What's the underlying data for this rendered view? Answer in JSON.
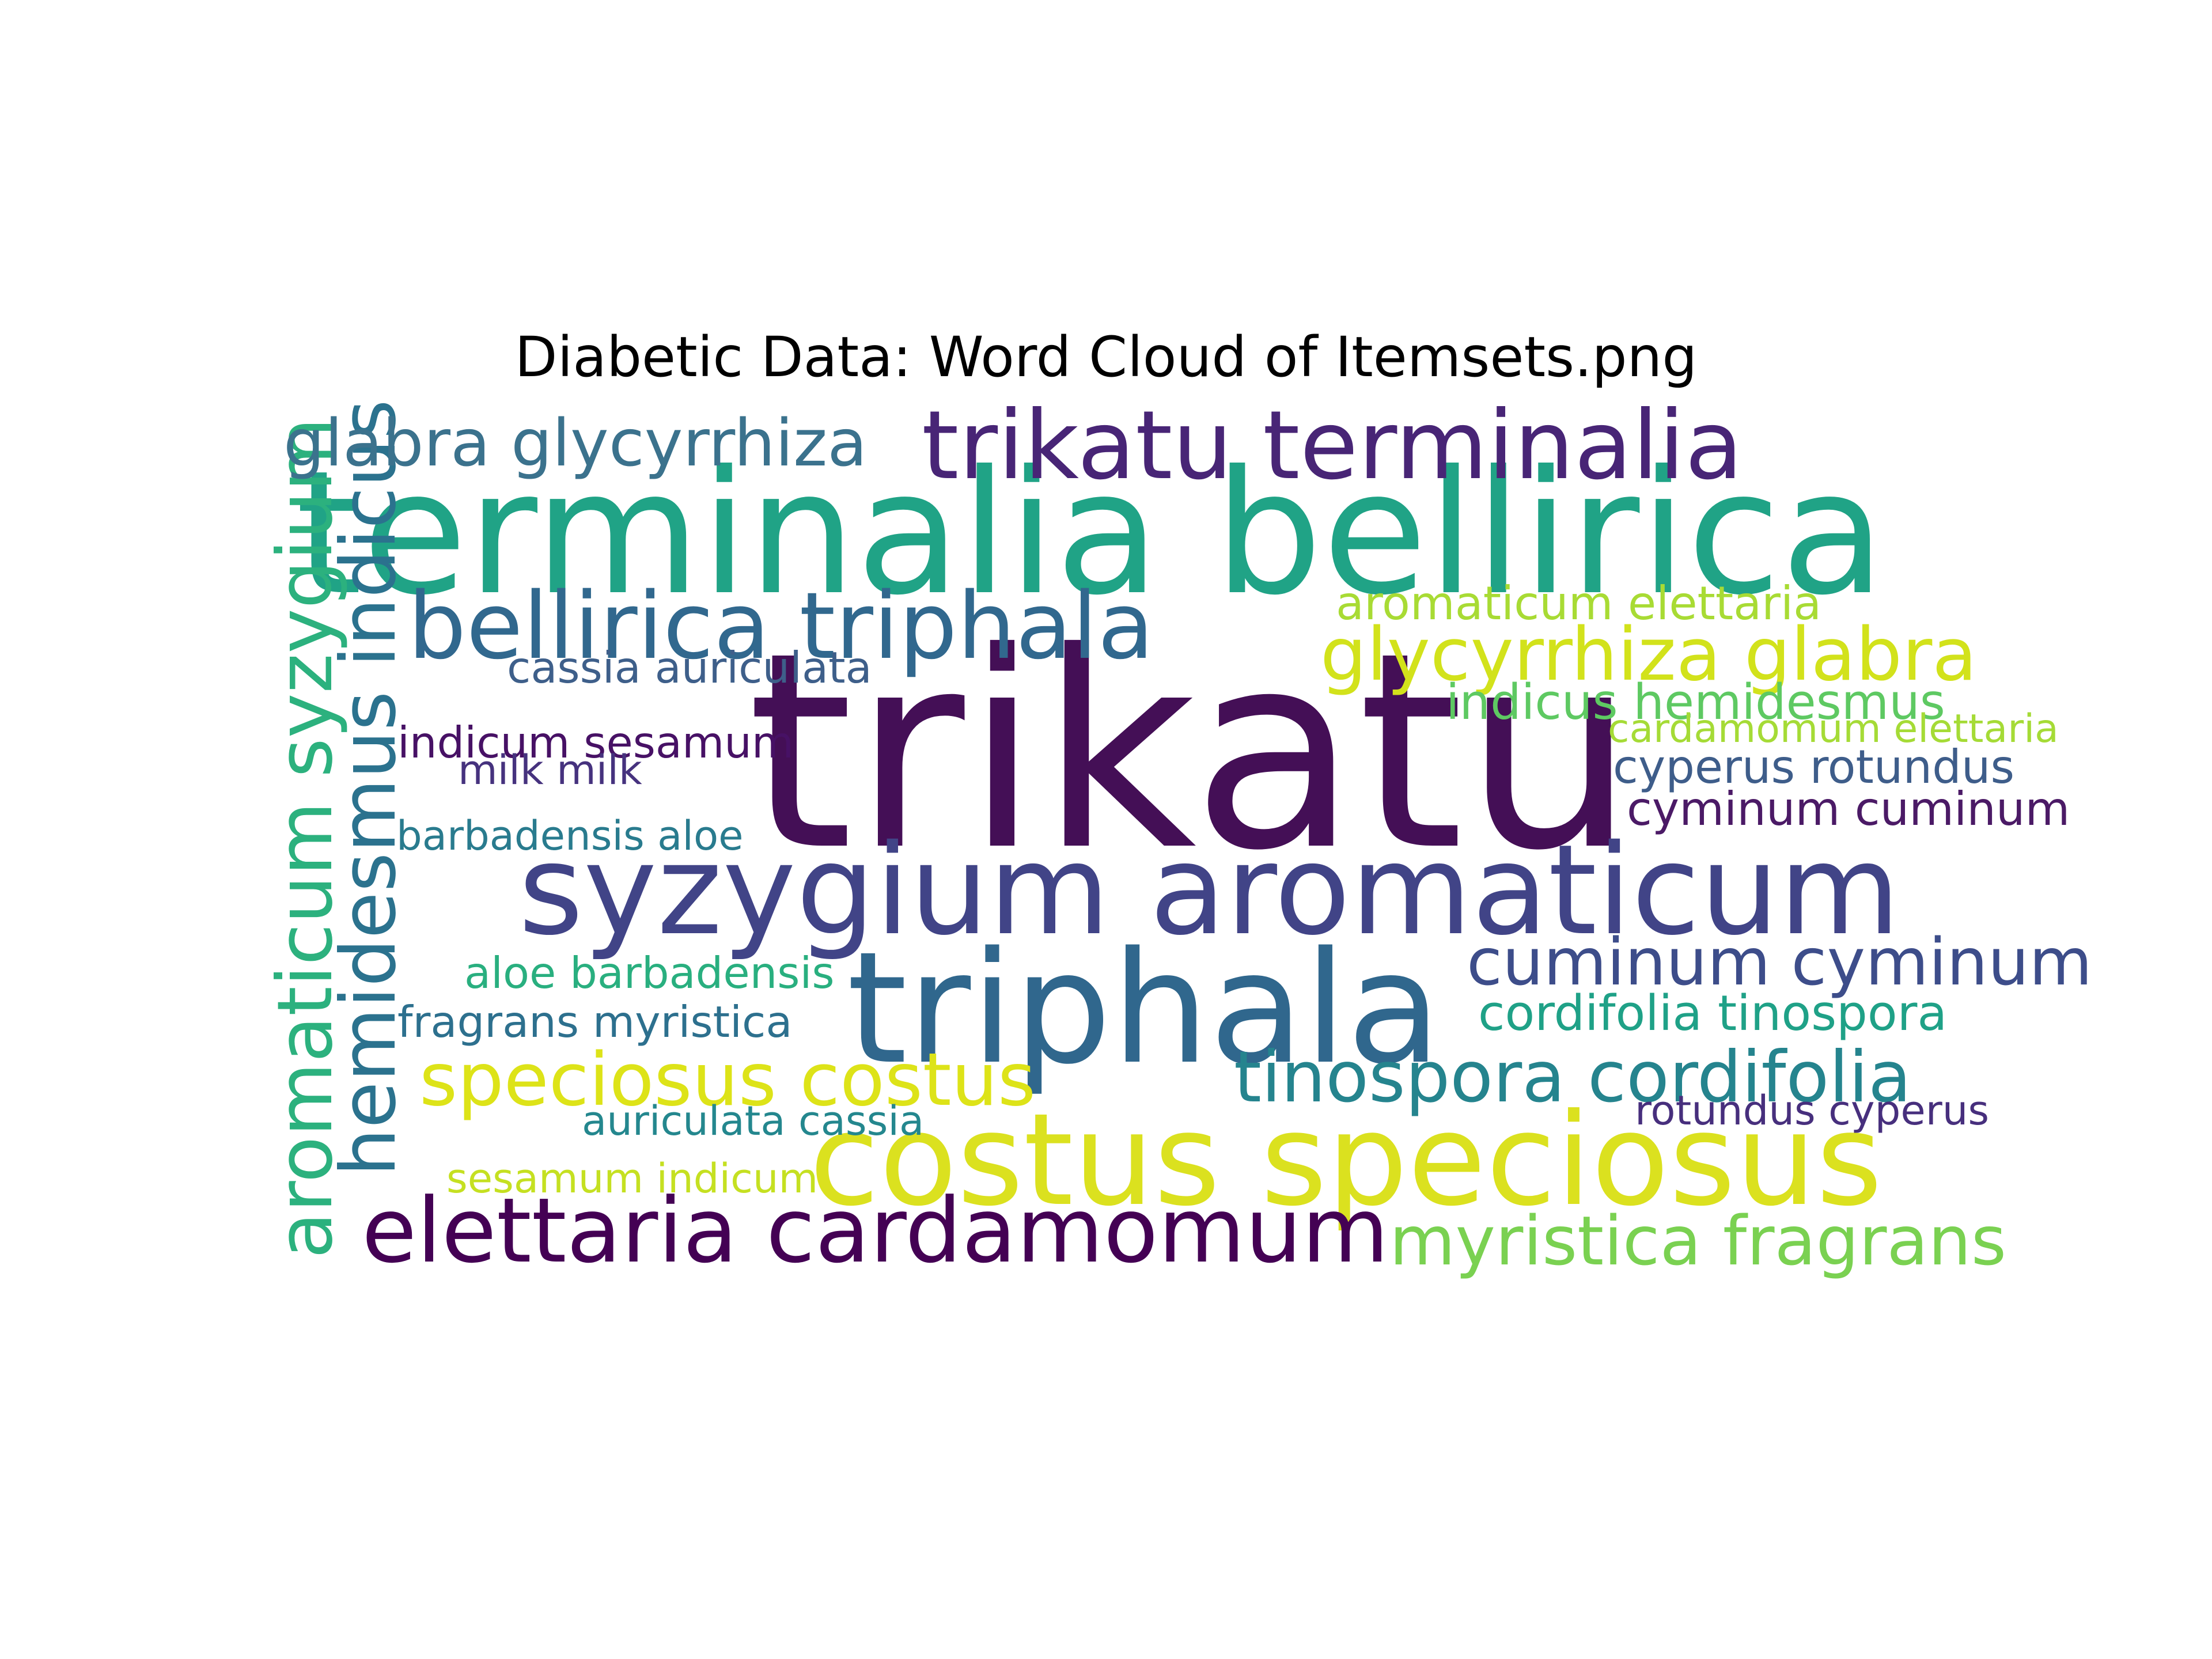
{
  "chart_data": {
    "type": "word_cloud",
    "title": "Diabetic Data: Word Cloud of Itemsets.png",
    "background": "#ffffff",
    "colormap": "viridis",
    "words": [
      {
        "text": "trikatu",
        "weight": 1.0,
        "color": "#440f56"
      },
      {
        "text": "terminalia bellirica",
        "weight": 0.63,
        "color": "#20a386"
      },
      {
        "text": "triphala",
        "weight": 0.57,
        "color": "#30678d"
      },
      {
        "text": "costus speciosus",
        "weight": 0.47,
        "color": "#dbe11f"
      },
      {
        "text": "syzygium aromaticum",
        "weight": 0.46,
        "color": "#414487"
      },
      {
        "text": "trikatu terminalia",
        "weight": 0.35,
        "color": "#482576"
      },
      {
        "text": "bellirica triphala",
        "weight": 0.34,
        "color": "#31688e"
      },
      {
        "text": "elettaria cardamomum",
        "weight": 0.33,
        "color": "#440154"
      },
      {
        "text": "aromaticum syzygium",
        "weight": 0.28,
        "color": "#2cb17e"
      },
      {
        "text": "hemidesmus indicus",
        "weight": 0.28,
        "color": "#2b728e"
      },
      {
        "text": "glycyrrhiza glabra",
        "weight": 0.27,
        "color": "#d2e21b"
      },
      {
        "text": "speciosus costus",
        "weight": 0.27,
        "color": "#dde318"
      },
      {
        "text": "tinospora cordifolia",
        "weight": 0.26,
        "color": "#25848e"
      },
      {
        "text": "myristica fragrans",
        "weight": 0.25,
        "color": "#7ad151"
      },
      {
        "text": "glabra glycyrrhiza",
        "weight": 0.24,
        "color": "#3b728d"
      },
      {
        "text": "cuminum cyminum",
        "weight": 0.24,
        "color": "#3d4d8a"
      },
      {
        "text": "indicus hemidesmus",
        "weight": 0.18,
        "color": "#5ec962"
      },
      {
        "text": "cordifolia tinospora",
        "weight": 0.18,
        "color": "#1fa187"
      },
      {
        "text": "aromaticum elettaria",
        "weight": 0.17,
        "color": "#a8db34"
      },
      {
        "text": "cyperus rotundus",
        "weight": 0.17,
        "color": "#3e5d8a"
      },
      {
        "text": "cyminum cuminum",
        "weight": 0.17,
        "color": "#4b1a66"
      },
      {
        "text": "cassia auriculata",
        "weight": 0.16,
        "color": "#3e5f8a"
      },
      {
        "text": "indicum sesamum",
        "weight": 0.16,
        "color": "#471165"
      },
      {
        "text": "fragrans myristica",
        "weight": 0.16,
        "color": "#2d708e"
      },
      {
        "text": "aloe barbadensis",
        "weight": 0.16,
        "color": "#29af7f"
      },
      {
        "text": "sesamum indicum",
        "weight": 0.15,
        "color": "#c5e021"
      },
      {
        "text": "cardamomum elettaria",
        "weight": 0.145,
        "color": "#a5db36"
      },
      {
        "text": "milk milk",
        "weight": 0.15,
        "color": "#46327e"
      },
      {
        "text": "barbadensis aloe",
        "weight": 0.15,
        "color": "#297b8e"
      },
      {
        "text": "auriculata cassia",
        "weight": 0.15,
        "color": "#24878e"
      },
      {
        "text": "rotundus cyperus",
        "weight": 0.15,
        "color": "#472f7d"
      }
    ]
  }
}
